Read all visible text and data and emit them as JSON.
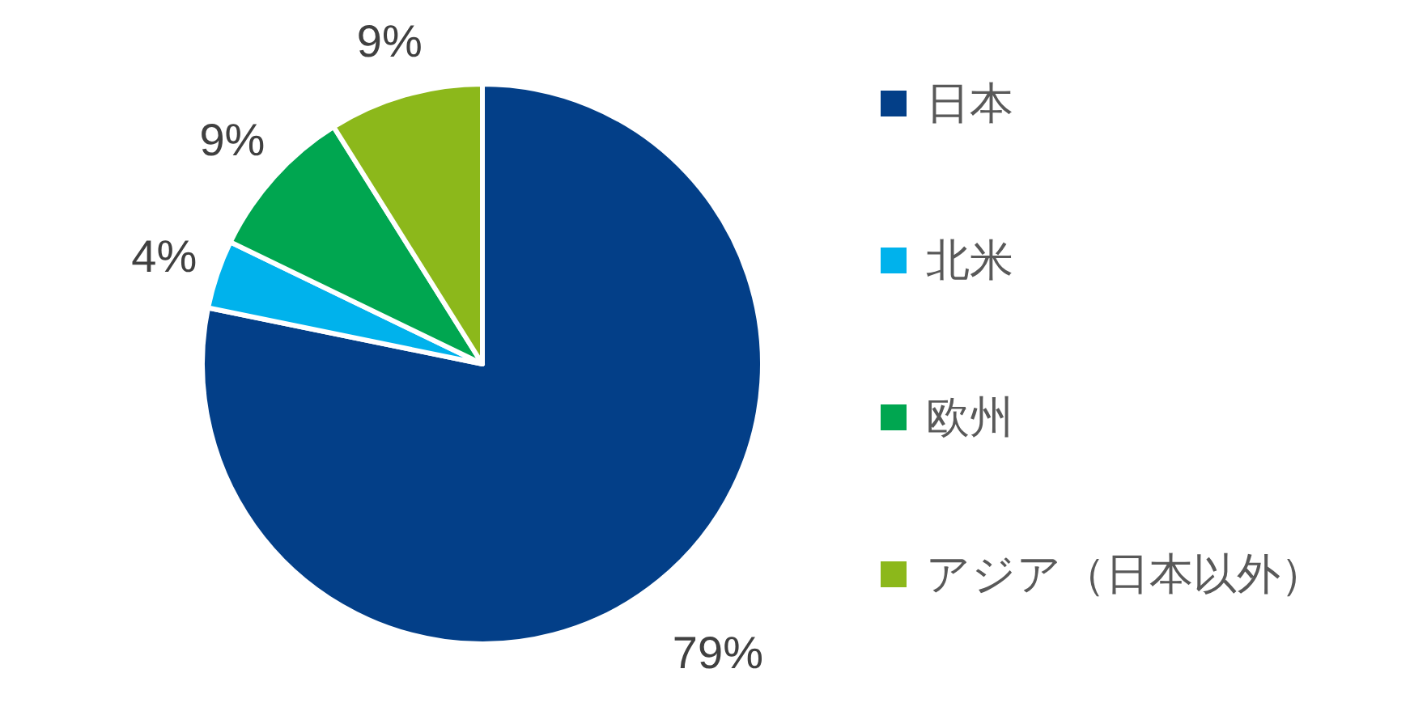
{
  "chart_data": {
    "type": "pie",
    "categories": [
      "日本",
      "北米",
      "欧州",
      "アジア（日本以外）"
    ],
    "values": [
      79,
      4,
      9,
      9
    ],
    "colors": [
      "#033f88",
      "#00b2ec",
      "#00a650",
      "#8cb81b"
    ],
    "value_labels": [
      "79%",
      "4%",
      "9%",
      "9%"
    ],
    "legend": "right"
  }
}
